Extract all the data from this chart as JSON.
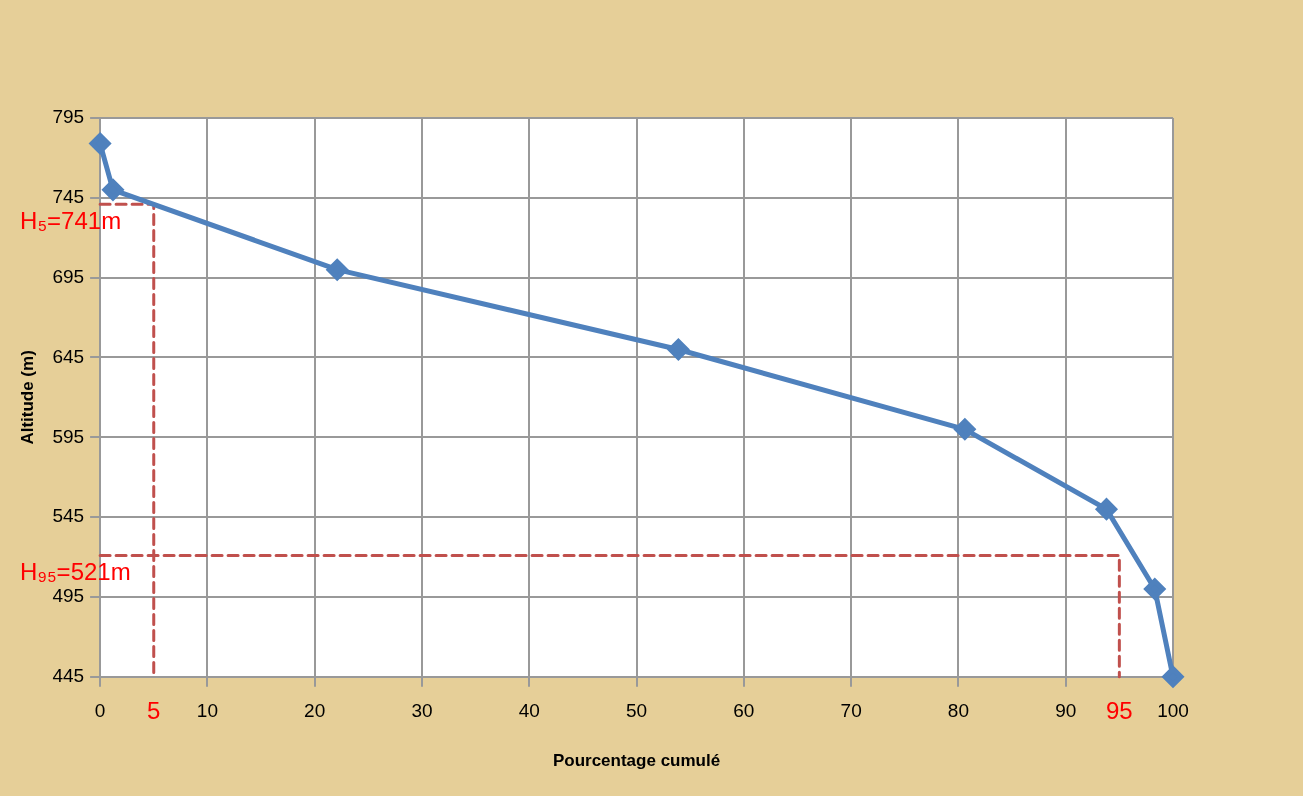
{
  "chart_data": {
    "type": "line",
    "xlabel": "Pourcentage cumulé",
    "ylabel": "Altitude (m)",
    "xlim": [
      0,
      100
    ],
    "xticks": [
      0,
      10,
      20,
      30,
      40,
      50,
      60,
      70,
      80,
      90,
      100
    ],
    "ylim": [
      445,
      795
    ],
    "yticks": [
      445,
      495,
      545,
      595,
      645,
      695,
      745,
      795
    ],
    "grid": true,
    "legend": false,
    "series": [
      {
        "color": "#4f81bd",
        "marker": "diamond",
        "line_style": "solid",
        "x": [
          0,
          1.2,
          22.1,
          53.9,
          80.6,
          93.8,
          98.3,
          100
        ],
        "values": [
          779,
          750,
          700,
          650,
          600,
          550,
          500,
          445
        ]
      },
      {
        "color": "#c0504d",
        "marker": "none",
        "line_style": "dashed",
        "x": [
          0,
          5,
          5
        ],
        "values": [
          741,
          741,
          445
        ]
      },
      {
        "color": "#c0504d",
        "marker": "none",
        "line_style": "dashed",
        "x": [
          0,
          95,
          95
        ],
        "values": [
          521,
          521,
          445
        ]
      }
    ],
    "annotations": [
      {
        "text": "H₅=741m",
        "x": 0,
        "y": 741
      },
      {
        "text": "5",
        "x": 5,
        "y": 445
      },
      {
        "text": "H₉₅=521m",
        "x": 0,
        "y": 521
      },
      {
        "text": "95",
        "x": 95,
        "y": 445
      }
    ]
  }
}
